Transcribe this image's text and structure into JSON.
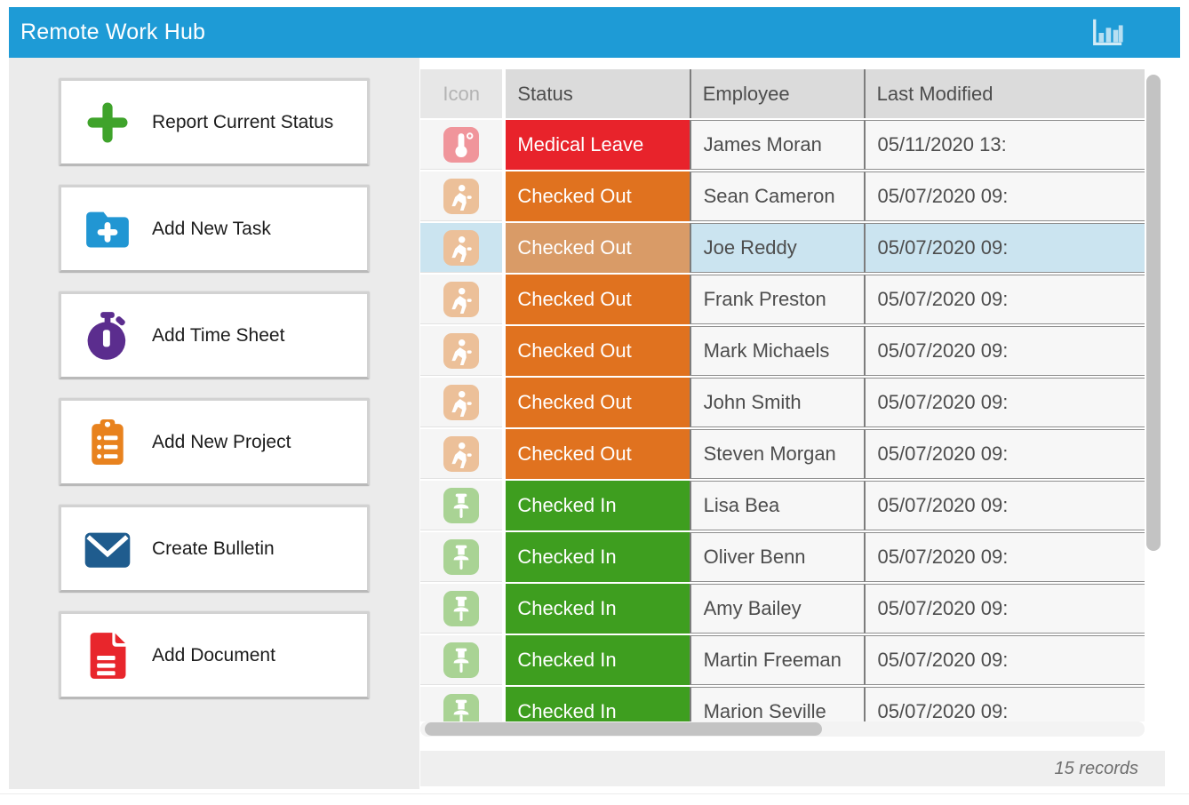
{
  "app": {
    "title": "Remote Work Hub",
    "header_icon": "bar-chart-icon"
  },
  "sidebar": {
    "buttons": [
      {
        "label": "Report Current Status",
        "icon": "plus-icon",
        "color": "#3FA32B"
      },
      {
        "label": "Add New Task",
        "icon": "folder-plus-icon",
        "color": "#2196D3"
      },
      {
        "label": "Add Time Sheet",
        "icon": "stopwatch-icon",
        "color": "#5B2D8E"
      },
      {
        "label": "Add New Project",
        "icon": "clipboard-icon",
        "color": "#E8821E"
      },
      {
        "label": "Create Bulletin",
        "icon": "envelope-icon",
        "color": "#1F5C8E"
      },
      {
        "label": "Add Document",
        "icon": "document-icon",
        "color": "#E8262C"
      }
    ]
  },
  "table": {
    "columns": [
      "Icon",
      "Status",
      "Employee",
      "Last Modified"
    ],
    "rows": [
      {
        "icon": "thermometer",
        "status": "Medical Leave",
        "status_type": "medical",
        "employee": "James Moran",
        "modified": "05/11/2020 13:",
        "selected": false
      },
      {
        "icon": "walk-out",
        "status": "Checked Out",
        "status_type": "checked_out",
        "employee": "Sean Cameron",
        "modified": "05/07/2020 09:",
        "selected": false
      },
      {
        "icon": "walk-out",
        "status": "Checked Out",
        "status_type": "checked_out",
        "employee": "Joe Reddy",
        "modified": "05/07/2020 09:",
        "selected": true
      },
      {
        "icon": "walk-out",
        "status": "Checked Out",
        "status_type": "checked_out",
        "employee": "Frank Preston",
        "modified": "05/07/2020 09:",
        "selected": false
      },
      {
        "icon": "walk-out",
        "status": "Checked Out",
        "status_type": "checked_out",
        "employee": "Mark Michaels",
        "modified": "05/07/2020 09:",
        "selected": false
      },
      {
        "icon": "walk-out",
        "status": "Checked Out",
        "status_type": "checked_out",
        "employee": "John Smith",
        "modified": "05/07/2020 09:",
        "selected": false
      },
      {
        "icon": "walk-out",
        "status": "Checked Out",
        "status_type": "checked_out",
        "employee": "Steven Morgan",
        "modified": "05/07/2020 09:",
        "selected": false
      },
      {
        "icon": "pushpin",
        "status": "Checked In",
        "status_type": "checked_in",
        "employee": "Lisa Bea",
        "modified": "05/07/2020 09:",
        "selected": false
      },
      {
        "icon": "pushpin",
        "status": "Checked In",
        "status_type": "checked_in",
        "employee": "Oliver Benn",
        "modified": "05/07/2020 09:",
        "selected": false
      },
      {
        "icon": "pushpin",
        "status": "Checked In",
        "status_type": "checked_in",
        "employee": "Amy Bailey",
        "modified": "05/07/2020 09:",
        "selected": false
      },
      {
        "icon": "pushpin",
        "status": "Checked In",
        "status_type": "checked_in",
        "employee": "Martin Freeman",
        "modified": "05/07/2020 09:",
        "selected": false
      },
      {
        "icon": "pushpin",
        "status": "Checked In",
        "status_type": "checked_in",
        "employee": "Marion Seville",
        "modified": "05/07/2020 09:",
        "selected": false
      }
    ],
    "record_count": "15 records"
  },
  "colors": {
    "titlebar_bg": "#1E9BD6",
    "status_medical": "#E8232B",
    "status_checked_out": "#E0721F",
    "status_checked_out_selected": "#D99B67",
    "status_checked_in": "#3E9E1F",
    "selected_row_bg": "#CBE4F0",
    "icon_medical": "#F0959B",
    "icon_checked_out": "#ECC099",
    "icon_checked_in": "#A9D394"
  }
}
